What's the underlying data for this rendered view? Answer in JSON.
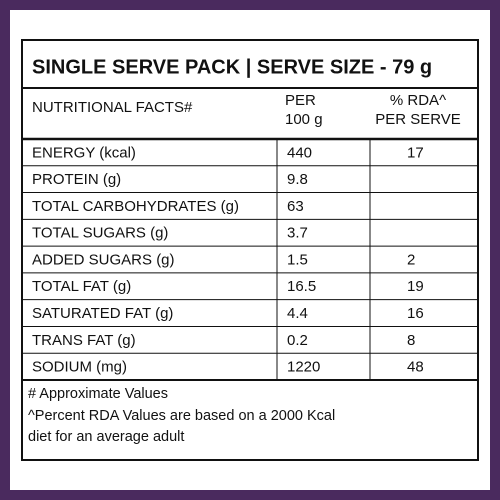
{
  "title": "SINGLE SERVE PACK | SERVE SIZE - 79 g",
  "table": {
    "headers": {
      "name": "NUTRITIONAL FACTS#",
      "per_100g": [
        "PER",
        "100 g"
      ],
      "rda": [
        "% RDA^",
        "PER SERVE"
      ]
    },
    "rows": [
      {
        "name": "ENERGY (kcal)",
        "per_100g": "440",
        "rda": "17"
      },
      {
        "name": "PROTEIN (g)",
        "per_100g": "9.8"
      },
      {
        "name": "TOTAL CARBOHYDRATES (g)",
        "per_100g": "63"
      },
      {
        "name": "TOTAL SUGARS (g)",
        "per_100g": "3.7"
      },
      {
        "name": "ADDED SUGARS (g)",
        "per_100g": "1.5",
        "rda": "2"
      },
      {
        "name": "TOTAL FAT (g)",
        "per_100g": "16.5",
        "rda": "19"
      },
      {
        "name": "SATURATED FAT (g)",
        "per_100g": "4.4",
        "rda": "16"
      },
      {
        "name": "TRANS FAT (g)",
        "per_100g": "0.2",
        "rda": "8"
      },
      {
        "name": "SODIUM (mg)",
        "per_100g": "1220",
        "rda": "48"
      }
    ]
  },
  "footnotes": [
    "# Approximate Values",
    "^Percent RDA Values are based on a 2000 Kcal",
    "diet for an average adult"
  ]
}
